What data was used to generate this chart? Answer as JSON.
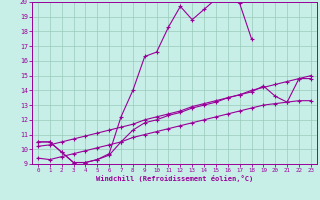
{
  "xlabel": "Windchill (Refroidissement éolien,°C)",
  "xlim": [
    -0.5,
    23.5
  ],
  "ylim": [
    9,
    20
  ],
  "xticks": [
    0,
    1,
    2,
    3,
    4,
    5,
    6,
    7,
    8,
    9,
    10,
    11,
    12,
    13,
    14,
    15,
    16,
    17,
    18,
    19,
    20,
    21,
    22,
    23
  ],
  "yticks": [
    9,
    10,
    11,
    12,
    13,
    14,
    15,
    16,
    17,
    18,
    19,
    20
  ],
  "bg_color": "#c8eee8",
  "line_color": "#990099",
  "grid_color": "#99ccbb",
  "series": [
    {
      "x": [
        0,
        1,
        2,
        3,
        4,
        5,
        6,
        7,
        8,
        9,
        10,
        11,
        12,
        13,
        14,
        15,
        16,
        17,
        18
      ],
      "y": [
        10.5,
        10.5,
        9.8,
        9.1,
        9.1,
        9.3,
        9.7,
        12.2,
        14.0,
        16.3,
        16.6,
        18.3,
        19.7,
        18.8,
        19.5,
        20.2,
        20.3,
        19.9,
        17.5
      ]
    },
    {
      "x": [
        0,
        1,
        2,
        3,
        4,
        5,
        6,
        7,
        8,
        9,
        10,
        11,
        12,
        13,
        14,
        15,
        16,
        17,
        18,
        19,
        20,
        21,
        22,
        23
      ],
      "y": [
        10.2,
        10.3,
        10.5,
        10.7,
        10.9,
        11.1,
        11.3,
        11.5,
        11.7,
        12.0,
        12.2,
        12.4,
        12.6,
        12.9,
        13.1,
        13.3,
        13.5,
        13.7,
        14.0,
        14.2,
        14.4,
        14.6,
        14.8,
        15.0
      ]
    },
    {
      "x": [
        0,
        1,
        2,
        3,
        4,
        5,
        6,
        7,
        8,
        9,
        10,
        11,
        12,
        13,
        14,
        15,
        16,
        17,
        18,
        19,
        20,
        21,
        22,
        23
      ],
      "y": [
        10.5,
        10.5,
        9.8,
        9.1,
        9.1,
        9.3,
        9.6,
        10.5,
        11.3,
        11.8,
        12.0,
        12.3,
        12.5,
        12.8,
        13.0,
        13.2,
        13.5,
        13.7,
        13.9,
        14.3,
        13.6,
        13.2,
        14.8,
        14.8
      ]
    },
    {
      "x": [
        0,
        1,
        2,
        3,
        4,
        5,
        6,
        7,
        8,
        9,
        10,
        11,
        12,
        13,
        14,
        15,
        16,
        17,
        18,
        19,
        20,
        21,
        22,
        23
      ],
      "y": [
        9.4,
        9.3,
        9.5,
        9.7,
        9.9,
        10.1,
        10.3,
        10.5,
        10.8,
        11.0,
        11.2,
        11.4,
        11.6,
        11.8,
        12.0,
        12.2,
        12.4,
        12.6,
        12.8,
        13.0,
        13.1,
        13.2,
        13.3,
        13.3
      ]
    }
  ]
}
